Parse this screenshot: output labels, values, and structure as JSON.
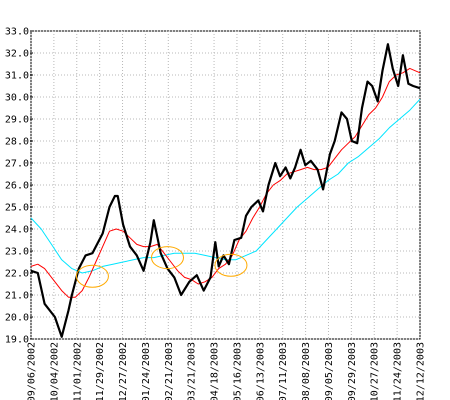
{
  "chart_data": {
    "type": "line",
    "title": "",
    "xlabel": "",
    "ylabel": "",
    "ylim": [
      19.0,
      33.0
    ],
    "yticks": [
      "19.0",
      "20.0",
      "21.0",
      "22.0",
      "23.0",
      "24.0",
      "25.0",
      "26.0",
      "27.0",
      "28.0",
      "29.0",
      "30.0",
      "31.0",
      "32.0",
      "33.0"
    ],
    "xticks": [
      "09/06/2002",
      "10/04/2002",
      "11/01/2002",
      "11/29/2002",
      "12/27/2002",
      "01/24/2003",
      "02/21/2003",
      "03/21/2003",
      "04/18/2003",
      "05/16/2003",
      "06/13/2003",
      "07/11/2003",
      "08/08/2003",
      "09/05/2003",
      "09/29/2003",
      "10/27/2003",
      "11/24/2003",
      "12/12/2003"
    ],
    "grid": true,
    "legend": "none",
    "series": [
      {
        "color": "#000000",
        "values": [
          [
            0.0,
            22.1
          ],
          [
            1.0,
            22.0
          ],
          [
            2.0,
            20.6
          ],
          [
            3.5,
            20.0
          ],
          [
            4.5,
            19.1
          ],
          [
            5.5,
            20.3
          ],
          [
            6.0,
            21.0
          ],
          [
            7.0,
            22.2
          ],
          [
            8.0,
            22.8
          ],
          [
            9.0,
            22.9
          ],
          [
            10.5,
            23.8
          ],
          [
            11.5,
            25.0
          ],
          [
            12.3,
            25.5
          ],
          [
            12.7,
            25.5
          ],
          [
            13.5,
            24.2
          ],
          [
            14.5,
            23.2
          ],
          [
            15.5,
            22.8
          ],
          [
            16.5,
            22.1
          ],
          [
            17.5,
            23.4
          ],
          [
            18.0,
            24.4
          ],
          [
            19.0,
            22.9
          ],
          [
            20.0,
            22.2
          ],
          [
            21.0,
            21.8
          ],
          [
            22.0,
            21.0
          ],
          [
            23.2,
            21.6
          ],
          [
            24.3,
            21.9
          ],
          [
            25.3,
            21.2
          ],
          [
            26.3,
            21.8
          ],
          [
            27.0,
            23.4
          ],
          [
            27.5,
            22.3
          ],
          [
            28.2,
            22.8
          ],
          [
            29.0,
            22.4
          ],
          [
            29.8,
            23.5
          ],
          [
            30.8,
            23.6
          ],
          [
            31.5,
            24.6
          ],
          [
            32.3,
            25.0
          ],
          [
            33.3,
            25.3
          ],
          [
            34.0,
            24.8
          ],
          [
            34.8,
            26.0
          ],
          [
            35.8,
            27.0
          ],
          [
            36.5,
            26.4
          ],
          [
            37.3,
            26.8
          ],
          [
            38.0,
            26.3
          ],
          [
            38.7,
            26.8
          ],
          [
            39.5,
            27.6
          ],
          [
            40.2,
            26.9
          ],
          [
            41.0,
            27.1
          ],
          [
            42.0,
            26.7
          ],
          [
            42.8,
            25.8
          ],
          [
            43.8,
            27.4
          ],
          [
            44.5,
            28.0
          ],
          [
            45.5,
            29.3
          ],
          [
            46.3,
            29.0
          ],
          [
            47.0,
            28.0
          ],
          [
            47.8,
            27.9
          ],
          [
            48.5,
            29.5
          ],
          [
            49.3,
            30.7
          ],
          [
            50.0,
            30.5
          ],
          [
            50.8,
            29.8
          ],
          [
            51.5,
            31.2
          ],
          [
            52.3,
            32.4
          ],
          [
            53.0,
            31.3
          ],
          [
            53.8,
            30.5
          ],
          [
            54.5,
            31.9
          ],
          [
            55.3,
            30.6
          ],
          [
            56.0,
            30.5
          ],
          [
            57.0,
            30.4
          ]
        ]
      },
      {
        "color": "#ff0000",
        "values": [
          [
            0.0,
            22.3
          ],
          [
            1.0,
            22.4
          ],
          [
            2.0,
            22.2
          ],
          [
            3.5,
            21.6
          ],
          [
            4.5,
            21.2
          ],
          [
            5.5,
            20.9
          ],
          [
            6.5,
            20.9
          ],
          [
            7.5,
            21.2
          ],
          [
            8.5,
            21.8
          ],
          [
            9.5,
            22.5
          ],
          [
            10.5,
            23.2
          ],
          [
            11.5,
            23.9
          ],
          [
            12.5,
            24.0
          ],
          [
            13.5,
            23.9
          ],
          [
            14.5,
            23.6
          ],
          [
            15.5,
            23.3
          ],
          [
            16.5,
            23.2
          ],
          [
            17.5,
            23.2
          ],
          [
            18.5,
            23.3
          ],
          [
            19.5,
            22.9
          ],
          [
            20.5,
            22.5
          ],
          [
            21.5,
            22.1
          ],
          [
            22.5,
            21.8
          ],
          [
            23.5,
            21.7
          ],
          [
            24.5,
            21.5
          ],
          [
            25.5,
            21.6
          ],
          [
            26.5,
            21.8
          ],
          [
            27.5,
            22.2
          ],
          [
            28.5,
            22.4
          ],
          [
            29.5,
            22.8
          ],
          [
            30.5,
            23.5
          ],
          [
            31.5,
            23.9
          ],
          [
            32.5,
            24.5
          ],
          [
            33.5,
            25.0
          ],
          [
            34.5,
            25.6
          ],
          [
            35.5,
            26.0
          ],
          [
            36.5,
            26.2
          ],
          [
            37.5,
            26.5
          ],
          [
            38.5,
            26.6
          ],
          [
            39.5,
            26.7
          ],
          [
            40.5,
            26.8
          ],
          [
            41.5,
            26.7
          ],
          [
            42.5,
            26.7
          ],
          [
            43.5,
            26.8
          ],
          [
            44.5,
            27.2
          ],
          [
            45.5,
            27.6
          ],
          [
            46.5,
            27.9
          ],
          [
            47.5,
            28.2
          ],
          [
            48.5,
            28.7
          ],
          [
            49.5,
            29.2
          ],
          [
            50.5,
            29.5
          ],
          [
            51.5,
            30.0
          ],
          [
            52.5,
            30.7
          ],
          [
            53.5,
            31.0
          ],
          [
            54.5,
            31.1
          ],
          [
            55.5,
            31.3
          ],
          [
            57.0,
            31.1
          ]
        ]
      },
      {
        "color": "#00e5ff",
        "values": [
          [
            0.0,
            24.5
          ],
          [
            1.5,
            24.0
          ],
          [
            3.0,
            23.3
          ],
          [
            4.5,
            22.6
          ],
          [
            6.0,
            22.2
          ],
          [
            7.5,
            22.0
          ],
          [
            9.0,
            22.1
          ],
          [
            10.5,
            22.3
          ],
          [
            12.0,
            22.4
          ],
          [
            13.5,
            22.5
          ],
          [
            15.0,
            22.6
          ],
          [
            16.5,
            22.7
          ],
          [
            18.0,
            22.7
          ],
          [
            19.5,
            22.8
          ],
          [
            21.0,
            22.9
          ],
          [
            22.5,
            22.9
          ],
          [
            24.0,
            22.9
          ],
          [
            25.5,
            22.8
          ],
          [
            27.0,
            22.7
          ],
          [
            28.5,
            22.6
          ],
          [
            30.0,
            22.6
          ],
          [
            31.5,
            22.8
          ],
          [
            33.0,
            23.0
          ],
          [
            34.5,
            23.5
          ],
          [
            36.0,
            24.0
          ],
          [
            37.5,
            24.5
          ],
          [
            39.0,
            25.0
          ],
          [
            40.5,
            25.4
          ],
          [
            42.0,
            25.8
          ],
          [
            43.5,
            26.2
          ],
          [
            45.0,
            26.5
          ],
          [
            46.5,
            27.0
          ],
          [
            48.0,
            27.3
          ],
          [
            49.5,
            27.7
          ],
          [
            51.0,
            28.1
          ],
          [
            52.5,
            28.6
          ],
          [
            54.0,
            29.0
          ],
          [
            55.5,
            29.4
          ],
          [
            57.0,
            29.9
          ]
        ]
      }
    ],
    "annotations": [
      {
        "shape": "ellipse",
        "color": "#ffaa00",
        "cx": 9.0,
        "cy": 21.85
      },
      {
        "shape": "ellipse",
        "color": "#ffaa00",
        "cx": 20.0,
        "cy": 22.7
      },
      {
        "shape": "ellipse",
        "color": "#ffaa00",
        "cx": 29.3,
        "cy": 22.35
      }
    ]
  }
}
